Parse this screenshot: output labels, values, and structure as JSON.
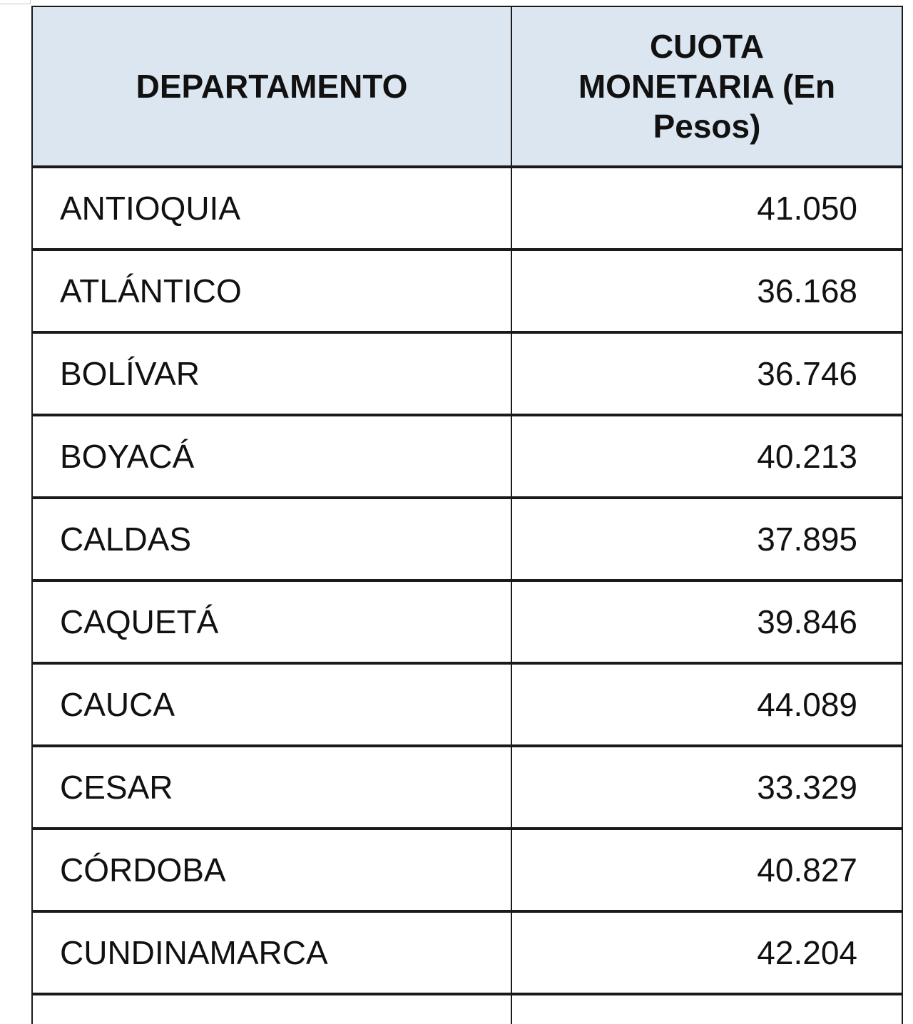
{
  "table": {
    "headers": {
      "department": "DEPARTAMENTO",
      "quota": "CUOTA MONETARIA (En Pesos)"
    },
    "rows": [
      {
        "department": "ANTIOQUIA",
        "quota": "41.050"
      },
      {
        "department": "ATLÁNTICO",
        "quota": "36.168"
      },
      {
        "department": "BOLÍVAR",
        "quota": "36.746"
      },
      {
        "department": "BOYACÁ",
        "quota": "40.213"
      },
      {
        "department": "CALDAS",
        "quota": "37.895"
      },
      {
        "department": "CAQUETÁ",
        "quota": "39.846"
      },
      {
        "department": "CAUCA",
        "quota": "44.089"
      },
      {
        "department": "CESAR",
        "quota": "33.329"
      },
      {
        "department": "CÓRDOBA",
        "quota": "40.827"
      },
      {
        "department": "CUNDINAMARCA",
        "quota": "42.204"
      }
    ]
  },
  "colors": {
    "header_background": "#dce6f1",
    "border": "#1a1a1a",
    "text": "#111111"
  }
}
